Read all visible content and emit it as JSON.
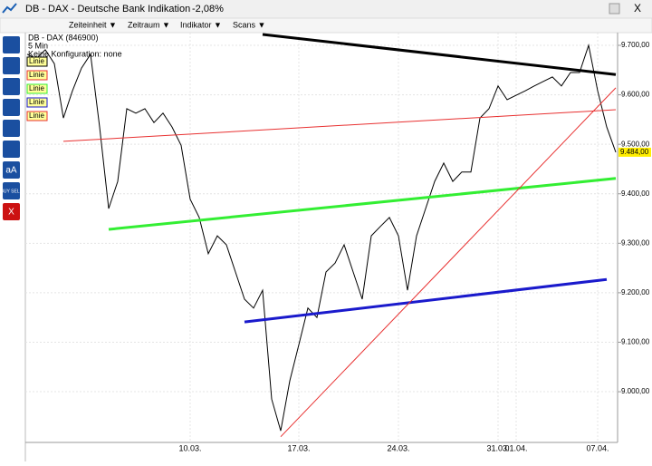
{
  "window": {
    "title": "DB - DAX - Deutsche Bank Indikation",
    "change": "-2,08%",
    "menu": [
      "Zeiteinheit ▼",
      "Zeitraum ▼",
      "Indikator ▼",
      "Scans ▼"
    ],
    "tools": [
      "aA",
      "BUY SELL",
      "X"
    ]
  },
  "chart_data": {
    "type": "line",
    "instrument": "DB - DAX (846900)",
    "interval": "5 Min",
    "config": "Keine Konfiguration: none",
    "categories": [
      null,
      null,
      null,
      null,
      null,
      null,
      null,
      null,
      null,
      null,
      null,
      null,
      null,
      null,
      null,
      null,
      null,
      null,
      "10.03.",
      null,
      null,
      null,
      null,
      null,
      null,
      null,
      null,
      null,
      null,
      null,
      "17.03.",
      null,
      null,
      null,
      null,
      null,
      null,
      null,
      null,
      null,
      null,
      "24.03.",
      null,
      null,
      null,
      null,
      null,
      null,
      null,
      null,
      null,
      null,
      "31.03.",
      null,
      "01.04.",
      null,
      null,
      null,
      null,
      null,
      null,
      null,
      null,
      "07.04.",
      null,
      null
    ],
    "ylim": [
      8903,
      9722
    ],
    "yticks": [
      {
        "value": 9000,
        "label": "9.000,00"
      },
      {
        "value": 9100,
        "label": "9.100,00"
      },
      {
        "value": 9200,
        "label": "9.200,00"
      },
      {
        "value": 9300,
        "label": "9.300,00"
      },
      {
        "value": 9400,
        "label": "9.400,00"
      },
      {
        "value": 9500,
        "label": "9.500,00"
      },
      {
        "value": 9600,
        "label": "9.600,00"
      },
      {
        "value": 9700,
        "label": "9.700,00"
      }
    ],
    "grid": true,
    "series": [
      {
        "color": "#000000",
        "values": [
          9682,
          9673,
          9691,
          9663,
          9553,
          9608,
          9654,
          9682,
          9535,
          9370,
          9425,
          9572,
          9563,
          9572,
          9544,
          9563,
          9535,
          9498,
          9389,
          9352,
          9279,
          9315,
          9297,
          9242,
          9187,
          9169,
          9205,
          8985,
          8921,
          9022,
          9095,
          9169,
          9150,
          9242,
          9260,
          9297,
          9242,
          9187,
          9315,
          9334,
          9352,
          9315,
          9205,
          9315,
          9370,
          9425,
          9462,
          9425,
          9444,
          9444,
          9553,
          9572,
          9618,
          9590,
          9599,
          9608,
          9618,
          9627,
          9636,
          9618,
          9645,
          9645,
          9700,
          9608,
          9535,
          9484
        ],
        "value_labels": [
          null,
          null,
          null,
          null,
          null,
          null,
          null,
          null,
          null,
          null,
          null,
          null,
          null,
          null,
          null,
          null,
          null,
          null,
          null,
          null,
          null,
          null,
          null,
          null,
          null,
          null,
          null,
          null,
          null,
          null,
          null,
          null,
          null,
          null,
          null,
          null,
          null,
          null,
          null,
          null,
          null,
          null,
          null,
          null,
          null,
          null,
          null,
          null,
          null,
          null,
          null,
          null,
          null,
          null,
          null,
          null,
          null,
          null,
          null,
          null,
          null,
          null,
          null,
          null,
          null,
          "9.484,00"
        ]
      },
      {
        "name": "Linie",
        "color": "#000000",
        "width": 3,
        "values": [
          null,
          null,
          null,
          null,
          null,
          null,
          null,
          null,
          null,
          null,
          null,
          null,
          null,
          null,
          null,
          null,
          null,
          null,
          null,
          null,
          null,
          null,
          null,
          null,
          null,
          null,
          9722,
          null,
          null,
          null,
          null,
          null,
          null,
          null,
          null,
          null,
          null,
          null,
          null,
          null,
          null,
          null,
          null,
          null,
          null,
          null,
          null,
          null,
          null,
          null,
          null,
          null,
          null,
          null,
          null,
          null,
          null,
          null,
          null,
          null,
          null,
          null,
          null,
          null,
          null,
          9641
        ]
      },
      {
        "name": "Linie",
        "color": "#e83030",
        "width": 1,
        "values": [
          null,
          null,
          null,
          null,
          9506,
          null,
          null,
          null,
          null,
          null,
          null,
          null,
          null,
          null,
          null,
          null,
          null,
          null,
          null,
          null,
          null,
          null,
          null,
          null,
          null,
          null,
          null,
          null,
          null,
          null,
          null,
          null,
          null,
          null,
          null,
          null,
          null,
          null,
          null,
          null,
          null,
          null,
          null,
          null,
          null,
          null,
          null,
          null,
          null,
          null,
          null,
          null,
          null,
          null,
          null,
          null,
          null,
          null,
          null,
          null,
          null,
          null,
          null,
          null,
          null,
          9570
        ]
      },
      {
        "name": "Linie",
        "color": "#33ee33",
        "width": 3,
        "values": [
          null,
          null,
          null,
          null,
          null,
          null,
          null,
          null,
          null,
          9328,
          null,
          null,
          null,
          null,
          null,
          null,
          null,
          null,
          null,
          null,
          null,
          null,
          null,
          null,
          null,
          null,
          null,
          null,
          null,
          null,
          null,
          null,
          null,
          null,
          null,
          null,
          null,
          null,
          null,
          null,
          null,
          null,
          null,
          null,
          null,
          null,
          null,
          null,
          null,
          null,
          null,
          null,
          null,
          null,
          null,
          null,
          null,
          null,
          null,
          null,
          null,
          null,
          null,
          null,
          null,
          9431
        ]
      },
      {
        "name": "Linie",
        "color": "#1a1acc",
        "width": 3,
        "values": [
          null,
          null,
          null,
          null,
          null,
          null,
          null,
          null,
          null,
          null,
          null,
          null,
          null,
          null,
          null,
          null,
          null,
          null,
          null,
          null,
          null,
          null,
          null,
          null,
          9141,
          null,
          null,
          null,
          null,
          null,
          null,
          null,
          null,
          null,
          null,
          null,
          null,
          null,
          null,
          null,
          null,
          null,
          null,
          null,
          null,
          null,
          null,
          null,
          null,
          null,
          null,
          null,
          null,
          null,
          null,
          null,
          null,
          null,
          null,
          null,
          null,
          null,
          null,
          null,
          9227,
          null
        ]
      },
      {
        "name": "Linie",
        "color": "#e83030",
        "width": 1,
        "values": [
          null,
          null,
          null,
          null,
          null,
          null,
          null,
          null,
          null,
          null,
          null,
          null,
          null,
          null,
          null,
          null,
          null,
          null,
          null,
          null,
          null,
          null,
          null,
          null,
          null,
          null,
          null,
          null,
          8909,
          null,
          null,
          null,
          null,
          null,
          null,
          null,
          null,
          null,
          null,
          null,
          null,
          null,
          null,
          null,
          null,
          null,
          null,
          null,
          null,
          null,
          null,
          null,
          null,
          null,
          null,
          null,
          null,
          null,
          null,
          null,
          null,
          null,
          null,
          null,
          null,
          9614
        ]
      }
    ]
  }
}
